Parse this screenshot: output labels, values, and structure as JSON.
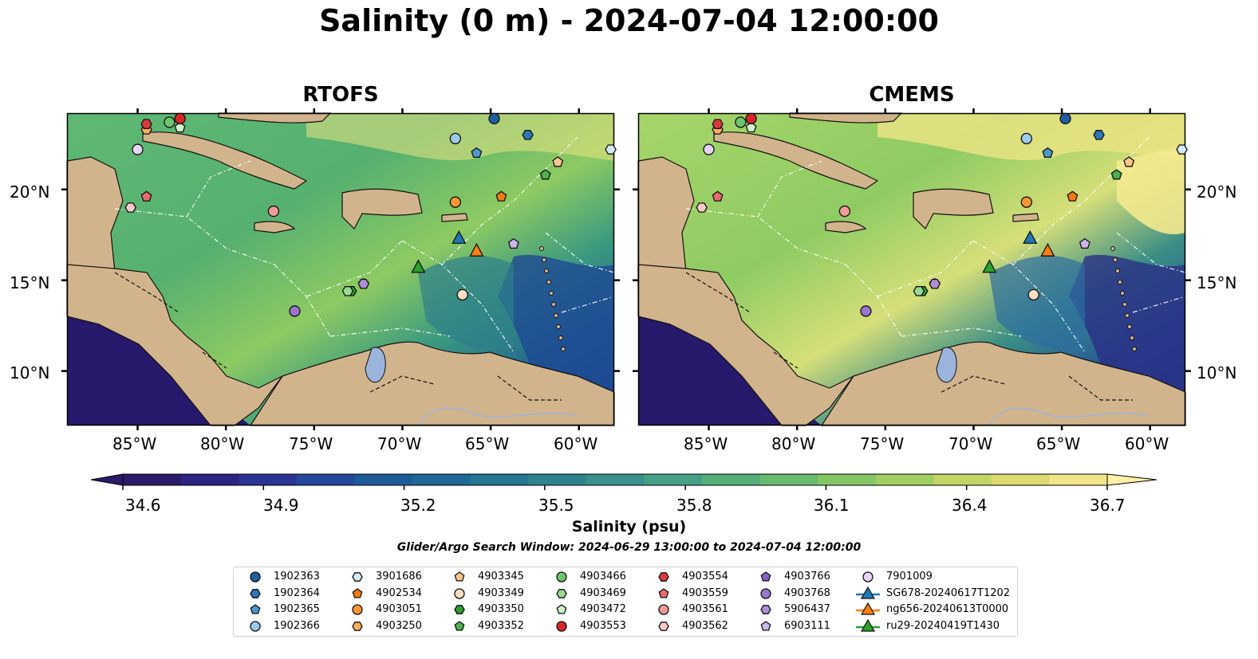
{
  "title": "Salinity (0 m) - 2024-07-04 12:00:00",
  "panels": [
    {
      "name": "RTOFS"
    },
    {
      "name": "CMEMS"
    }
  ],
  "map_axes": {
    "lon_ticks": [
      "85°W",
      "80°W",
      "75°W",
      "70°W",
      "65°W",
      "60°W"
    ],
    "lat_ticks": [
      "20°N",
      "15°N",
      "10°N"
    ],
    "lon_values": [
      -85,
      -80,
      -75,
      -70,
      -65,
      -60
    ],
    "lat_values": [
      20,
      15,
      10
    ],
    "lon_range": [
      -89,
      -58
    ],
    "lat_range": [
      7,
      24.2
    ]
  },
  "colorbar": {
    "label": "Salinity (psu)",
    "ticks": [
      "34.6",
      "34.9",
      "35.2",
      "35.5",
      "35.8",
      "36.1",
      "36.4",
      "36.7"
    ],
    "range": [
      34.6,
      36.7
    ],
    "extend": "both",
    "colormap": "haline"
  },
  "search_window": "Glider/Argo Search Window: 2024-06-29 13:00:00 to 2024-07-04 12:00:00",
  "colors": {
    "land": "#d2b48c",
    "lake": "#9ab4dc",
    "background_water_low": "#271a6b",
    "high_salinity": "#fae887"
  },
  "legend": [
    {
      "label": "1902363",
      "shape": "circle",
      "color": "#1f5fa0"
    },
    {
      "label": "1902364",
      "shape": "hexagon",
      "color": "#2b77b8"
    },
    {
      "label": "1902365",
      "shape": "pentagon",
      "color": "#4a97cc"
    },
    {
      "label": "1902366",
      "shape": "circle",
      "color": "#9ecae9"
    },
    {
      "label": "3901686",
      "shape": "hexagon",
      "color": "#d4eaf8"
    },
    {
      "label": "4902534",
      "shape": "pentagon",
      "color": "#f27b11"
    },
    {
      "label": "4903051",
      "shape": "circle",
      "color": "#f79535"
    },
    {
      "label": "4903250",
      "shape": "hexagon",
      "color": "#fdaf60"
    },
    {
      "label": "4903345",
      "shape": "pentagon",
      "color": "#fdc68e"
    },
    {
      "label": "4903349",
      "shape": "circle",
      "color": "#fde0c5"
    },
    {
      "label": "4903350",
      "shape": "hexagon",
      "color": "#2e9e2e"
    },
    {
      "label": "4903352",
      "shape": "pentagon",
      "color": "#4cb04c"
    },
    {
      "label": "4903466",
      "shape": "circle",
      "color": "#6dc56d"
    },
    {
      "label": "4903469",
      "shape": "hexagon",
      "color": "#98d994"
    },
    {
      "label": "4903472",
      "shape": "pentagon",
      "color": "#d3f0cc"
    },
    {
      "label": "4903553",
      "shape": "circle",
      "color": "#d62728"
    },
    {
      "label": "4903554",
      "shape": "hexagon",
      "color": "#db3b3b"
    },
    {
      "label": "4903559",
      "shape": "pentagon",
      "color": "#e86a6a"
    },
    {
      "label": "4903561",
      "shape": "circle",
      "color": "#f29a9a"
    },
    {
      "label": "4903562",
      "shape": "hexagon",
      "color": "#fbcaca"
    },
    {
      "label": "4903766",
      "shape": "pentagon",
      "color": "#8a5fc6"
    },
    {
      "label": "4903768",
      "shape": "circle",
      "color": "#9a75cf"
    },
    {
      "label": "5906437",
      "shape": "hexagon",
      "color": "#ae8ed9"
    },
    {
      "label": "6903111",
      "shape": "pentagon",
      "color": "#cdb7ea"
    },
    {
      "label": "7901009",
      "shape": "circle",
      "color": "#e6d3f6"
    },
    {
      "label": "SG678-20240617T1202",
      "shape": "triangle-line",
      "color": "#1f77b4"
    },
    {
      "label": "ng656-20240613T0000",
      "shape": "triangle-line",
      "color": "#ff7f0e"
    },
    {
      "label": "ru29-20240419T1430",
      "shape": "triangle-line",
      "color": "#2ca02c"
    }
  ],
  "observations": [
    {
      "id": "1902363",
      "lon": -64.8,
      "lat": 23.9
    },
    {
      "id": "1902364",
      "lon": -62.9,
      "lat": 23.0
    },
    {
      "id": "1902365",
      "lon": -65.8,
      "lat": 22.0
    },
    {
      "id": "1902366",
      "lon": -67.0,
      "lat": 22.8
    },
    {
      "id": "3901686",
      "lon": -58.2,
      "lat": 22.2
    },
    {
      "id": "4902534",
      "lon": -64.4,
      "lat": 19.6
    },
    {
      "id": "4903051",
      "lon": -67.0,
      "lat": 19.3
    },
    {
      "id": "4903250",
      "lon": -84.5,
      "lat": 23.3
    },
    {
      "id": "4903345",
      "lon": -61.2,
      "lat": 21.5
    },
    {
      "id": "4903349",
      "lon": -66.6,
      "lat": 14.2
    },
    {
      "id": "4903350",
      "lon": -72.9,
      "lat": 14.4
    },
    {
      "id": "4903352",
      "lon": -61.9,
      "lat": 20.8
    },
    {
      "id": "4903466",
      "lon": -83.2,
      "lat": 23.7
    },
    {
      "id": "4903469",
      "lon": -73.1,
      "lat": 14.4
    },
    {
      "id": "4903472",
      "lon": -82.6,
      "lat": 23.4
    },
    {
      "id": "4903553",
      "lon": -82.6,
      "lat": 23.9
    },
    {
      "id": "4903554",
      "lon": -84.5,
      "lat": 23.6
    },
    {
      "id": "4903559",
      "lon": -84.5,
      "lat": 19.6
    },
    {
      "id": "4903561",
      "lon": -77.3,
      "lat": 18.8
    },
    {
      "id": "4903562",
      "lon": -85.4,
      "lat": 19.0
    },
    {
      "id": "4903766",
      "lon": -72.2,
      "lat": 14.8
    },
    {
      "id": "4903768",
      "lon": -76.1,
      "lat": 13.3
    },
    {
      "id": "5906437",
      "lon": -72.2,
      "lat": 14.8
    },
    {
      "id": "6903111",
      "lon": -63.7,
      "lat": 17.0
    },
    {
      "id": "7901009",
      "lon": -85.0,
      "lat": 22.2
    }
  ],
  "gliders": [
    {
      "id": "SG678-20240617T1202",
      "lon": -66.8,
      "lat": 17.3
    },
    {
      "id": "ng656-20240613T0000",
      "lon": -65.8,
      "lat": 16.6
    },
    {
      "id": "ru29-20240419T1430",
      "lon": -69.1,
      "lat": 15.7
    }
  ]
}
